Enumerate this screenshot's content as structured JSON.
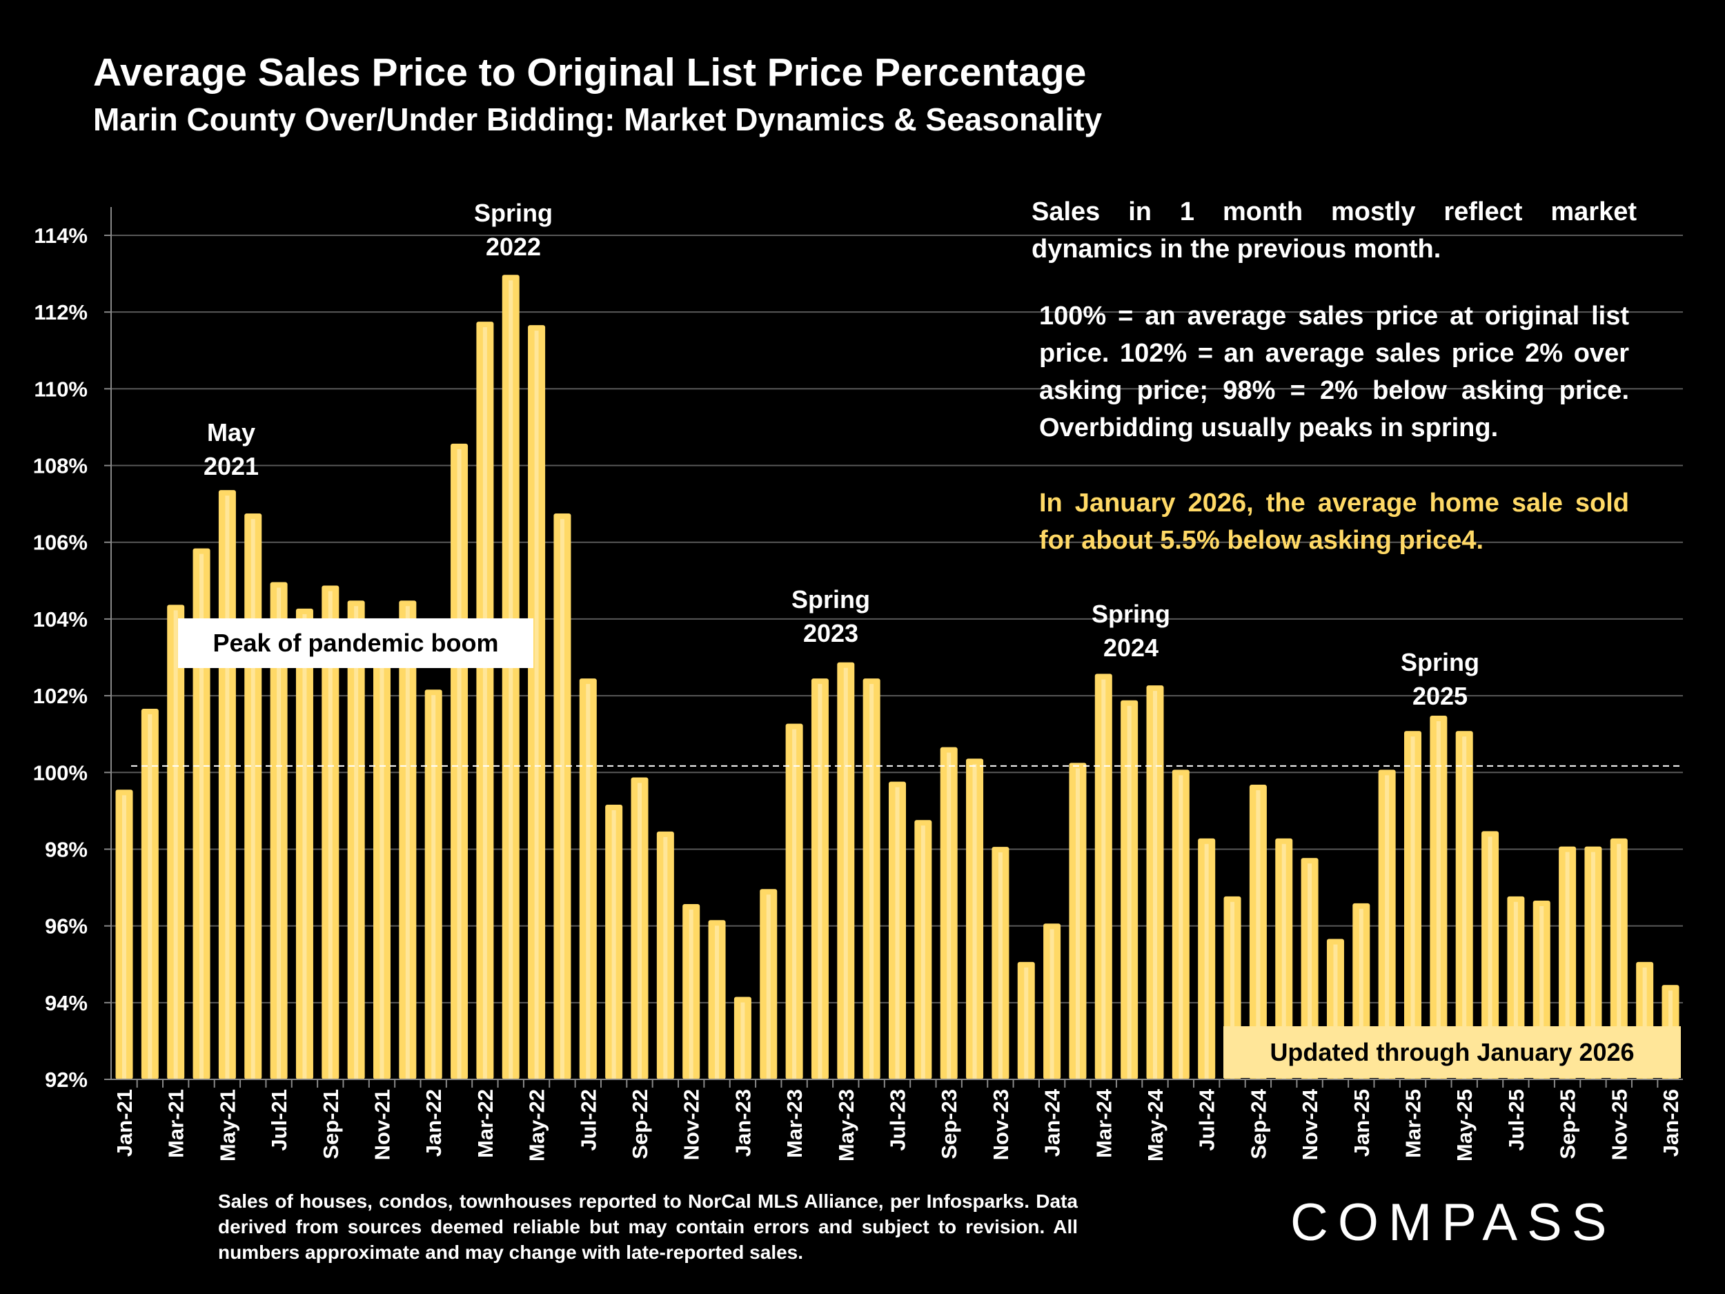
{
  "header": {
    "title": "Average Sales Price to Original List Price Percentage",
    "subtitle": "Marin County Over/Under Bidding: Market Dynamics & Seasonality"
  },
  "chart_data": {
    "type": "bar",
    "title": "Average Sales Price to Original List Price Percentage",
    "xlabel": "",
    "ylabel": "",
    "ylim": [
      92,
      114
    ],
    "yticks": [
      "92%",
      "94%",
      "96%",
      "98%",
      "100%",
      "102%",
      "104%",
      "106%",
      "108%",
      "110%",
      "112%",
      "114%"
    ],
    "grid": true,
    "reference_line": 100.17,
    "categories": [
      "Jan-21",
      "Feb-21",
      "Mar-21",
      "Apr-21",
      "May-21",
      "Jun-21",
      "Jul-21",
      "Aug-21",
      "Sep-21",
      "Oct-21",
      "Nov-21",
      "Dec-21",
      "Jan-22",
      "Feb-22",
      "Mar-22",
      "Apr-22",
      "May-22",
      "Jun-22",
      "Jul-22",
      "Aug-22",
      "Sep-22",
      "Oct-22",
      "Nov-22",
      "Dec-22",
      "Jan-23",
      "Feb-23",
      "Mar-23",
      "Apr-23",
      "May-23",
      "Jun-23",
      "Jul-23",
      "Aug-23",
      "Sep-23",
      "Oct-23",
      "Nov-23",
      "Dec-23",
      "Jan-24",
      "Feb-24",
      "Mar-24",
      "Apr-24",
      "May-24",
      "Jun-24",
      "Jul-24",
      "Aug-24",
      "Sep-24",
      "Oct-24",
      "Nov-24",
      "Dec-24",
      "Jan-25",
      "Feb-25",
      "Mar-25",
      "Apr-25",
      "May-25",
      "Jun-25",
      "Jul-25",
      "Aug-25",
      "Sep-25",
      "Oct-25",
      "Nov-25",
      "Dec-25",
      "Jan-26"
    ],
    "xticks": [
      "Jan-21",
      "Mar-21",
      "May-21",
      "Jul-21",
      "Sep-21",
      "Nov-21",
      "Jan-22",
      "Mar-22",
      "May-22",
      "Jul-22",
      "Sep-22",
      "Nov-22",
      "Jan-23",
      "Mar-23",
      "May-23",
      "Jul-23",
      "Sep-23",
      "Nov-23",
      "Jan-24",
      "Mar-24",
      "May-24",
      "Jul-24",
      "Sep-24",
      "Nov-24",
      "Jan-25",
      "Mar-25",
      "May-25",
      "Jul-25",
      "Sep-25",
      "Nov-25",
      "Jan-26"
    ],
    "values": [
      99.55,
      101.66,
      104.37,
      105.84,
      107.36,
      106.75,
      104.96,
      104.27,
      104.87,
      104.48,
      103.5,
      104.48,
      102.16,
      108.57,
      111.75,
      112.97,
      111.66,
      106.75,
      102.45,
      99.16,
      99.87,
      98.46,
      96.57,
      96.15,
      94.15,
      96.96,
      101.27,
      102.45,
      102.87,
      102.45,
      99.76,
      98.76,
      100.66,
      100.36,
      98.06,
      95.06,
      96.06,
      100.25,
      102.57,
      101.88,
      102.27,
      100.07,
      98.28,
      96.77,
      99.68,
      98.28,
      97.77,
      95.66,
      96.59,
      100.07,
      101.08,
      101.48,
      101.08,
      98.47,
      96.77,
      96.66,
      98.07,
      98.07,
      98.28,
      95.06,
      94.46
    ],
    "colors": {
      "bar": "#FFD966",
      "bar_highlight": "#FFE699",
      "grid": "#595959",
      "reference_line": "#FFFFFF"
    },
    "annotations": [
      {
        "line1": "May",
        "line2": "2021",
        "at": "May-21"
      },
      {
        "line1": "Spring",
        "line2": "2022",
        "at": "Apr-22"
      },
      {
        "line1": "Spring",
        "line2": "2023",
        "at": "May-23"
      },
      {
        "line1": "Spring",
        "line2": "2024",
        "at": "Apr-24"
      },
      {
        "line1": "Spring",
        "line2": "2025",
        "at": "Apr-25"
      }
    ],
    "peak_label": "Peak of pandemic boom",
    "updated_label": "Updated through January 2026"
  },
  "notes": {
    "p1": "Sales in 1 month mostly reflect market dynamics in the previous month.",
    "p2": "100% = an average sales price at original list price. 102% = an average sales price 2% over asking price; 98% = 2% below asking price. Overbidding usually peaks in spring.",
    "p3": "In January 2026, the average home sale sold for about 5.5% below asking price4."
  },
  "footnote": "Sales of houses, condos, townhouses reported to NorCal MLS Alliance, per Infosparks. Data derived from sources deemed reliable but may contain errors and subject to revision. All numbers approximate and may change with late-reported sales.",
  "logo": "COMPASS"
}
